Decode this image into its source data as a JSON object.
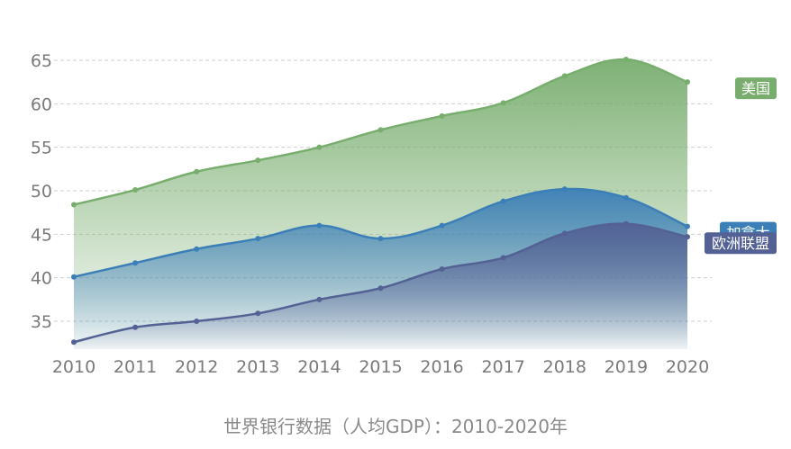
{
  "chart_data": {
    "type": "area",
    "title": "",
    "xlabel": "",
    "ylabel": "",
    "x": [
      "2010",
      "2011",
      "2012",
      "2013",
      "2014",
      "2015",
      "2016",
      "2017",
      "2018",
      "2019",
      "2020"
    ],
    "ylim": [
      32,
      66
    ],
    "yticks": [
      35,
      40,
      45,
      50,
      55,
      60,
      65
    ],
    "grid": true,
    "series": [
      {
        "name": "美国",
        "color": "#78ad6e",
        "values": [
          48.4,
          50.1,
          52.2,
          53.5,
          55.0,
          57.0,
          58.6,
          60.1,
          63.2,
          65.1,
          62.5
        ]
      },
      {
        "name": "加拿大",
        "color": "#3c7fb8",
        "values": [
          40.1,
          41.7,
          43.3,
          44.5,
          46.0,
          44.5,
          46.0,
          48.8,
          50.2,
          49.2,
          45.9
        ]
      },
      {
        "name": "欧洲联盟",
        "color": "#536194",
        "values": [
          32.6,
          34.3,
          35.0,
          35.9,
          37.5,
          38.8,
          41.0,
          42.3,
          45.1,
          46.2,
          44.7
        ]
      }
    ]
  },
  "source_text": "世界银行数据（人均GDP）：2010-2020年"
}
